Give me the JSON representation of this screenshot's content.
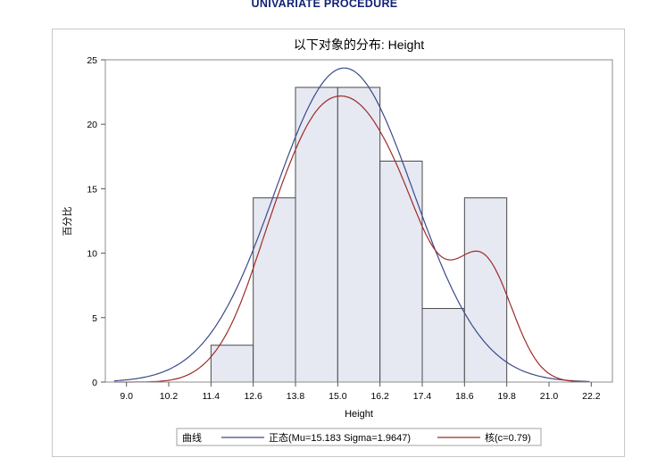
{
  "header": {
    "procedure_title": "UNIVARIATE PROCEDURE"
  },
  "chart_data": {
    "type": "histogram",
    "title": "以下对象的分布: Height",
    "xlabel": "Height",
    "ylabel": "百分比",
    "xlim": [
      8.4,
      22.8
    ],
    "ylim": [
      0,
      25
    ],
    "x_ticks": [
      "9.0",
      "10.2",
      "11.4",
      "12.6",
      "13.8",
      "15.0",
      "16.2",
      "17.4",
      "18.6",
      "19.8",
      "21.0",
      "22.2"
    ],
    "y_ticks": [
      "0",
      "5",
      "10",
      "15",
      "20",
      "25"
    ],
    "bins": [
      {
        "start": 11.4,
        "end": 12.6,
        "value": 2.86
      },
      {
        "start": 12.6,
        "end": 13.8,
        "value": 14.29
      },
      {
        "start": 13.8,
        "end": 15.0,
        "value": 22.86
      },
      {
        "start": 15.0,
        "end": 16.2,
        "value": 22.86
      },
      {
        "start": 16.2,
        "end": 17.4,
        "value": 17.14
      },
      {
        "start": 17.4,
        "end": 18.6,
        "value": 5.71
      },
      {
        "start": 18.6,
        "end": 19.8,
        "value": 14.29
      }
    ],
    "series": [
      {
        "name": "正态(Mu=15.183 Sigma=1.9647)",
        "kind": "normal",
        "mu": 15.183,
        "sigma": 1.9647,
        "color": "#3a4a8a"
      },
      {
        "name": "核(c=0.79)",
        "kind": "kernel",
        "c": 0.79,
        "color": "#a02a2a"
      }
    ],
    "legend": {
      "label": "曲线",
      "position": "bottom"
    },
    "bar_fill": "#e6e9f2",
    "bar_stroke": "#4a4a4a",
    "grid": false
  }
}
